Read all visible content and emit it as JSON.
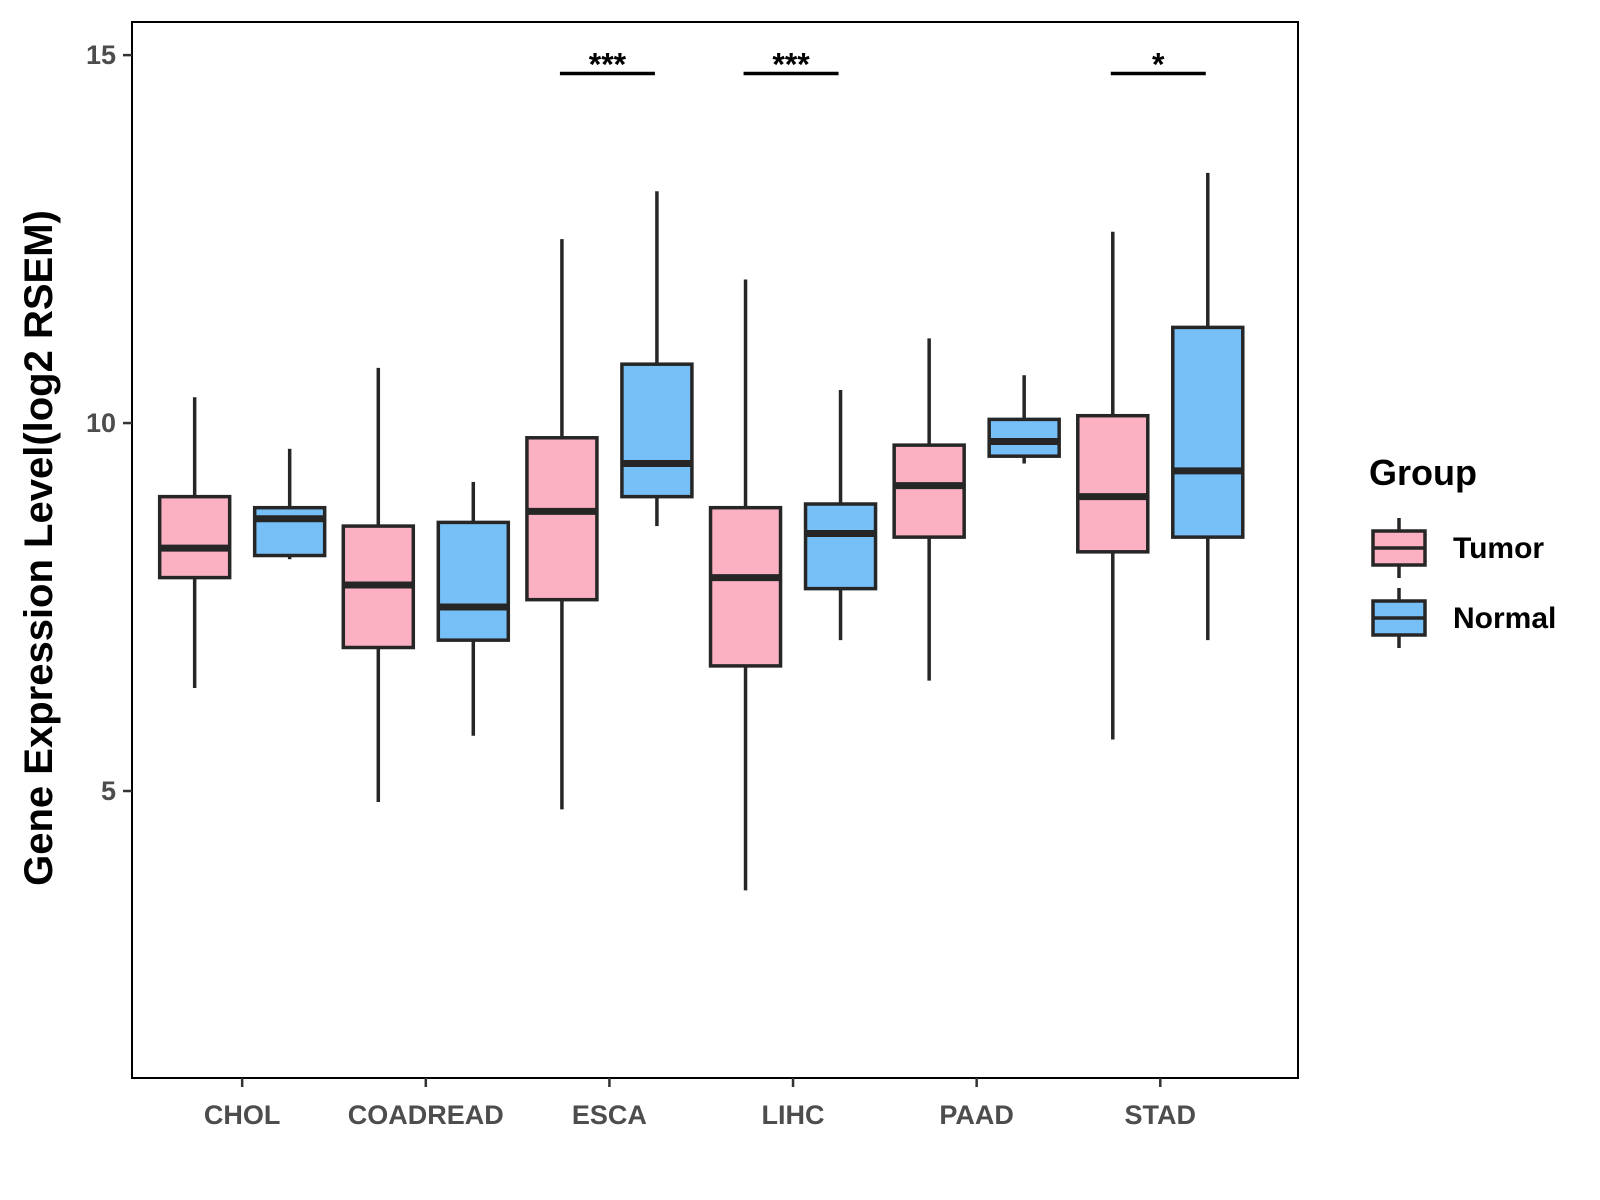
{
  "chart_data": {
    "type": "boxplot",
    "title": "",
    "xlabel": "",
    "ylabel": "Gene Expression Level(log2 RSEM)",
    "ylim": [
      1.1,
      15.45
    ],
    "yticks": [
      5,
      10,
      15
    ],
    "grid": false,
    "categories": [
      "CHOL",
      "COADREAD",
      "ESCA",
      "LIHC",
      "PAAD",
      "STAD"
    ],
    "legend": {
      "title": "Group",
      "position": "right",
      "entries": [
        {
          "name": "Tumor",
          "color": "#FBB1C2"
        },
        {
          "name": "Normal",
          "color": "#77C0F7"
        }
      ]
    },
    "series": [
      {
        "name": "Tumor",
        "color": "#FBB1C2",
        "boxes": [
          {
            "category": "CHOL",
            "min": 6.4,
            "q1": 7.9,
            "median": 8.3,
            "q3": 9.0,
            "max": 10.35
          },
          {
            "category": "COADREAD",
            "min": 4.85,
            "q1": 6.95,
            "median": 7.8,
            "q3": 8.6,
            "max": 10.75
          },
          {
            "category": "ESCA",
            "min": 4.75,
            "q1": 7.6,
            "median": 8.8,
            "q3": 9.8,
            "max": 12.5
          },
          {
            "category": "LIHC",
            "min": 3.65,
            "q1": 6.7,
            "median": 7.9,
            "q3": 8.85,
            "max": 11.95
          },
          {
            "category": "PAAD",
            "min": 6.5,
            "q1": 8.45,
            "median": 9.15,
            "q3": 9.7,
            "max": 11.15
          },
          {
            "category": "STAD",
            "min": 5.7,
            "q1": 8.25,
            "median": 9.0,
            "q3": 10.1,
            "max": 12.6
          }
        ]
      },
      {
        "name": "Normal",
        "color": "#77C0F7",
        "boxes": [
          {
            "category": "CHOL",
            "min": 8.15,
            "q1": 8.2,
            "median": 8.7,
            "q3": 8.85,
            "max": 9.65
          },
          {
            "category": "COADREAD",
            "min": 5.75,
            "q1": 7.05,
            "median": 7.5,
            "q3": 8.65,
            "max": 9.2
          },
          {
            "category": "ESCA",
            "min": 8.6,
            "q1": 9.0,
            "median": 9.45,
            "q3": 10.8,
            "max": 13.15
          },
          {
            "category": "LIHC",
            "min": 7.05,
            "q1": 7.75,
            "median": 8.5,
            "q3": 8.9,
            "max": 10.45
          },
          {
            "category": "PAAD",
            "min": 9.45,
            "q1": 9.55,
            "median": 9.75,
            "q3": 10.05,
            "max": 10.65
          },
          {
            "category": "STAD",
            "min": 7.05,
            "q1": 8.45,
            "median": 9.35,
            "q3": 11.3,
            "max": 13.4
          }
        ]
      }
    ],
    "annotations": [
      {
        "category": "ESCA",
        "label": "***",
        "y": 14.75
      },
      {
        "category": "LIHC",
        "label": "***",
        "y": 14.75
      },
      {
        "category": "STAD",
        "label": "*",
        "y": 14.75
      }
    ]
  }
}
